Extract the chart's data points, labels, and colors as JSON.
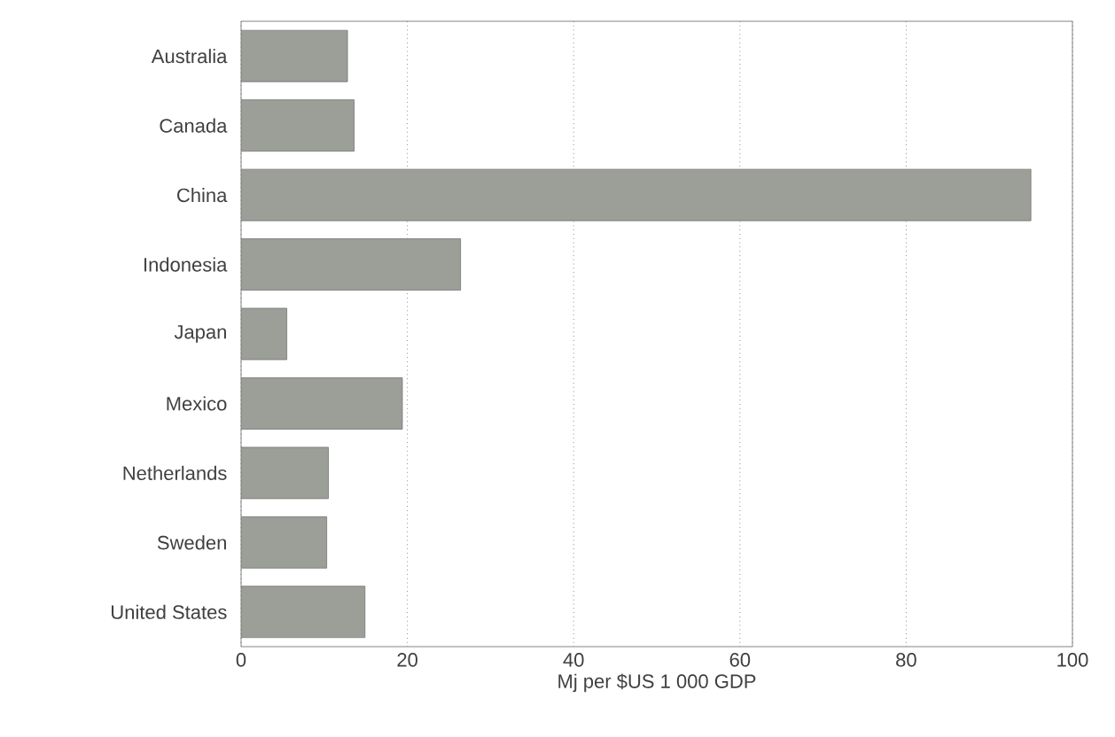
{
  "chart_data": {
    "type": "bar",
    "orientation": "horizontal",
    "xlabel": "Mj per $US 1 000 GDP",
    "categories": [
      "Australia",
      "Canada",
      "China",
      "Indonesia",
      "Japan",
      "Mexico",
      "Netherlands",
      "Sweden",
      "United States"
    ],
    "values": [
      12.8,
      13.6,
      95,
      26.4,
      5.5,
      19.4,
      10.5,
      10.3,
      14.9
    ],
    "color": "#9c9e98",
    "xlim": [
      0,
      100
    ],
    "xticks": [
      0,
      20,
      40,
      60,
      80,
      100
    ],
    "grid": "x"
  }
}
